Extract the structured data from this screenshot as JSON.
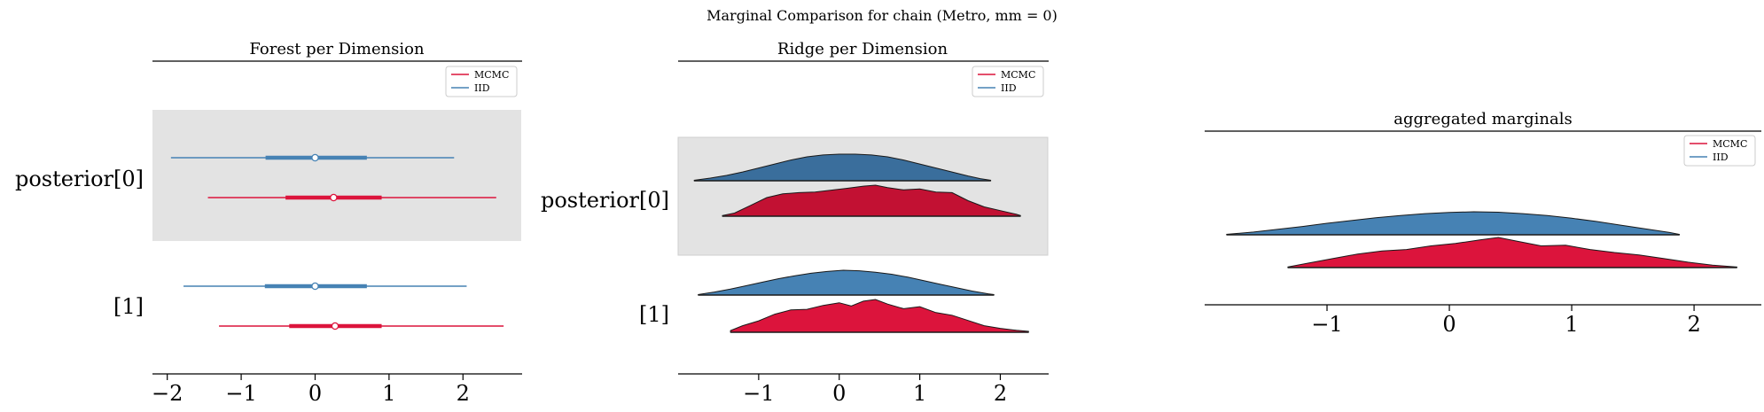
{
  "figure": {
    "suptitle": "Marginal Comparison for chain (Metro, mm = 0)"
  },
  "colors": {
    "mcmc": "#dc143c",
    "mcmc_dark": "#c21133",
    "iid": "#4682b4",
    "iid_dark": "#3a6e9c",
    "band": "#e3e3e3",
    "axis": "#000000"
  },
  "legend": {
    "labels": [
      "MCMC",
      "IID"
    ]
  },
  "chart_data": [
    {
      "type": "forest",
      "title": "Forest per Dimension",
      "row_labels": [
        "posterior[0]",
        "[1]"
      ],
      "xticks": [
        -2,
        -1,
        0,
        1,
        2
      ],
      "xtick_labels": [
        "−2",
        "−1",
        "0",
        "1",
        "2"
      ],
      "xlim": [
        -2.2,
        2.8
      ],
      "series": [
        {
          "name": "MCMC",
          "intervals": [
            {
              "dim": 0,
              "low": -1.45,
              "q25": -0.4,
              "median": 0.25,
              "q75": 0.9,
              "high": 2.45
            },
            {
              "dim": 1,
              "low": -1.3,
              "q25": -0.35,
              "median": 0.27,
              "q75": 0.9,
              "high": 2.55
            }
          ]
        },
        {
          "name": "IID",
          "intervals": [
            {
              "dim": 0,
              "low": -1.95,
              "q25": -0.67,
              "median": 0.0,
              "q75": 0.7,
              "high": 1.88
            },
            {
              "dim": 1,
              "low": -1.78,
              "q25": -0.68,
              "median": 0.0,
              "q75": 0.7,
              "high": 2.05
            }
          ]
        }
      ]
    },
    {
      "type": "ridge",
      "title": "Ridge per Dimension",
      "row_labels": [
        "posterior[0]",
        "[1]"
      ],
      "xticks": [
        -1,
        0,
        1,
        2
      ],
      "xtick_labels": [
        "−1",
        "0",
        "1",
        "2"
      ],
      "xlim": [
        -2.0,
        2.6
      ],
      "series": [
        {
          "name": "MCMC",
          "ridges": [
            {
              "dim": 0,
              "x": [
                -1.45,
                -1.3,
                -1.1,
                -0.9,
                -0.7,
                -0.5,
                -0.3,
                -0.1,
                0.1,
                0.3,
                0.45,
                0.6,
                0.8,
                1.0,
                1.2,
                1.4,
                1.6,
                1.8,
                2.0,
                2.2,
                2.25
              ],
              "density": [
                0.02,
                0.1,
                0.35,
                0.6,
                0.72,
                0.76,
                0.78,
                0.84,
                0.9,
                0.97,
                1.0,
                0.92,
                0.85,
                0.88,
                0.78,
                0.76,
                0.5,
                0.3,
                0.18,
                0.06,
                0.02
              ]
            },
            {
              "dim": 1,
              "x": [
                -1.35,
                -1.2,
                -1.0,
                -0.8,
                -0.6,
                -0.4,
                -0.2,
                0.0,
                0.15,
                0.3,
                0.45,
                0.6,
                0.8,
                1.0,
                1.2,
                1.4,
                1.6,
                1.8,
                2.0,
                2.2,
                2.35
              ],
              "density": [
                0.05,
                0.2,
                0.35,
                0.55,
                0.68,
                0.7,
                0.82,
                0.9,
                0.8,
                0.95,
                1.0,
                0.86,
                0.72,
                0.78,
                0.6,
                0.52,
                0.36,
                0.2,
                0.12,
                0.06,
                0.03
              ]
            }
          ]
        },
        {
          "name": "IID",
          "ridges": [
            {
              "dim": 0,
              "x": [
                -1.8,
                -1.6,
                -1.4,
                -1.2,
                -1.0,
                -0.8,
                -0.6,
                -0.4,
                -0.2,
                0.0,
                0.2,
                0.4,
                0.6,
                0.8,
                1.0,
                1.2,
                1.4,
                1.6,
                1.75,
                1.88
              ],
              "density": [
                0.02,
                0.1,
                0.2,
                0.33,
                0.48,
                0.63,
                0.78,
                0.9,
                0.97,
                1.0,
                1.0,
                0.97,
                0.9,
                0.78,
                0.63,
                0.48,
                0.33,
                0.18,
                0.08,
                0.02
              ]
            },
            {
              "dim": 1,
              "x": [
                -1.75,
                -1.55,
                -1.35,
                -1.15,
                -0.95,
                -0.75,
                -0.55,
                -0.35,
                -0.15,
                0.05,
                0.25,
                0.45,
                0.65,
                0.85,
                1.05,
                1.25,
                1.45,
                1.65,
                1.85,
                1.92
              ],
              "density": [
                0.02,
                0.12,
                0.24,
                0.38,
                0.52,
                0.66,
                0.78,
                0.88,
                0.95,
                1.0,
                0.98,
                0.92,
                0.84,
                0.72,
                0.58,
                0.44,
                0.3,
                0.16,
                0.05,
                0.02
              ]
            }
          ]
        }
      ]
    },
    {
      "type": "ridge",
      "title": "aggregated marginals",
      "row_labels": [],
      "xticks": [
        -1,
        0,
        1,
        2
      ],
      "xtick_labels": [
        "−1",
        "0",
        "1",
        "2"
      ],
      "xlim": [
        -2.0,
        2.55
      ],
      "series": [
        {
          "name": "MCMC",
          "x": [
            -1.32,
            -1.15,
            -0.95,
            -0.75,
            -0.55,
            -0.35,
            -0.15,
            0.05,
            0.25,
            0.4,
            0.55,
            0.75,
            0.95,
            1.15,
            1.35,
            1.55,
            1.75,
            1.95,
            2.15,
            2.35
          ],
          "density": [
            0.02,
            0.15,
            0.3,
            0.45,
            0.55,
            0.6,
            0.72,
            0.8,
            0.92,
            1.0,
            0.88,
            0.72,
            0.74,
            0.6,
            0.5,
            0.42,
            0.3,
            0.18,
            0.08,
            0.02
          ]
        },
        {
          "name": "IID",
          "x": [
            -1.82,
            -1.6,
            -1.4,
            -1.2,
            -1.0,
            -0.8,
            -0.6,
            -0.4,
            -0.2,
            0.0,
            0.2,
            0.4,
            0.6,
            0.8,
            1.0,
            1.2,
            1.4,
            1.6,
            1.8,
            1.88
          ],
          "density": [
            0.02,
            0.12,
            0.24,
            0.36,
            0.5,
            0.62,
            0.74,
            0.84,
            0.92,
            0.97,
            1.0,
            0.98,
            0.92,
            0.84,
            0.72,
            0.58,
            0.42,
            0.26,
            0.1,
            0.02
          ]
        }
      ]
    }
  ]
}
